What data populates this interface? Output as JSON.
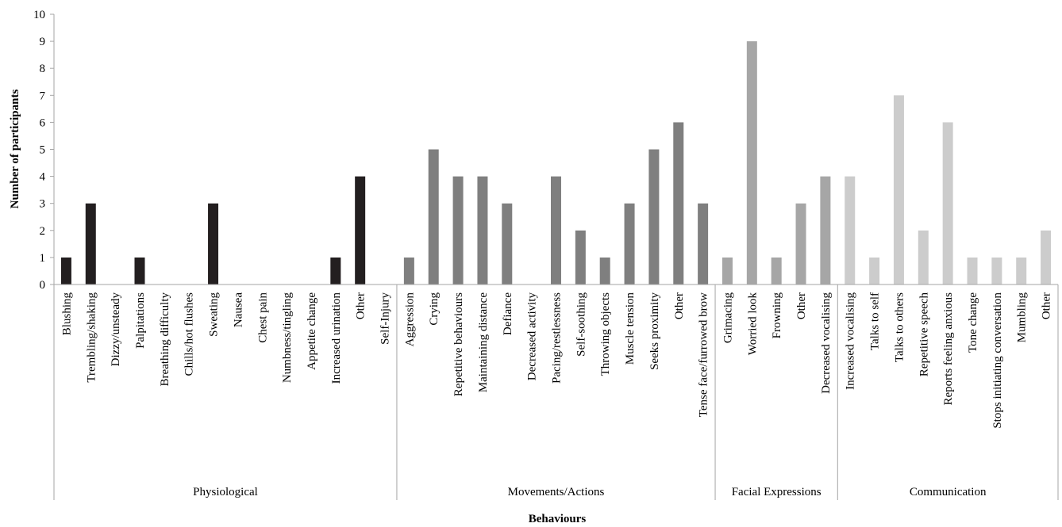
{
  "chart_data": {
    "type": "bar",
    "xlabel": "Behaviours",
    "ylabel": "Number of participants",
    "ylim": [
      0,
      10
    ],
    "yticks": [
      "0",
      "1",
      "2",
      "3",
      "4",
      "5",
      "6",
      "7",
      "8",
      "9",
      "10"
    ],
    "grid": false,
    "groups": [
      {
        "name": "Physiological",
        "color": "#231f20",
        "categories": [
          "Blushing",
          "Trembling/shaking",
          "Dizzy/unsteady",
          "Palpitations",
          "Breathing difficulty",
          "Chills/hot flushes",
          "Sweating",
          "Nausea",
          "Chest pain",
          "Numbness/tingling",
          "Appetite change",
          "Increased urination",
          "Other",
          "Self-Injury"
        ],
        "values": [
          1,
          3,
          0,
          1,
          0,
          0,
          3,
          0,
          0,
          0,
          0,
          1,
          4,
          0
        ]
      },
      {
        "name": "Movements/Actions",
        "color": "#7f7f7f",
        "categories": [
          "Aggression",
          "Crying",
          "Repetitive behaviours",
          "Maintaining distance",
          "Defiance",
          "Decreased activity",
          "Pacing/restlessness",
          "Self-soothing",
          "Throwing objects",
          "Muscle tension",
          "Seeks proximity",
          "Other",
          "Tense face/furrowed brow"
        ],
        "values": [
          1,
          5,
          4,
          4,
          3,
          0,
          4,
          2,
          1,
          3,
          5,
          6,
          3
        ]
      },
      {
        "name": "Facial Expressions",
        "color": "#a6a6a6",
        "categories": [
          "Grimacing",
          "Worried look",
          "Frowning",
          "Other",
          "Decreased vocalising"
        ],
        "values": [
          1,
          9,
          1,
          3,
          4
        ]
      },
      {
        "name": "Communication",
        "color": "#cccccc",
        "categories": [
          "Increased vocalising",
          "Talks to self",
          "Talks to others",
          "Repetitive speech",
          "Reports feeling anxious",
          "Tone change",
          "Stops initiating conversation",
          "Mumbling",
          "Other"
        ],
        "values": [
          4,
          1,
          7,
          2,
          6,
          1,
          1,
          1,
          2
        ]
      }
    ]
  }
}
